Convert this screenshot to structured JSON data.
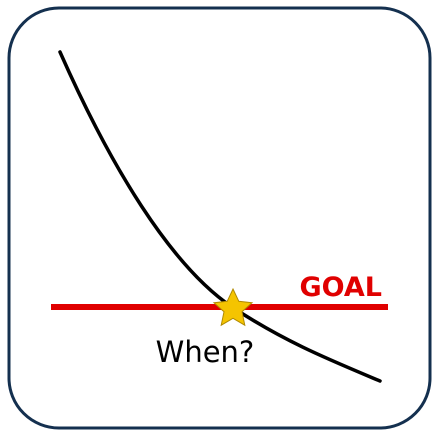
{
  "labels": {
    "goal": "GOAL",
    "question": "When?"
  },
  "icons": {
    "marker": "star-icon"
  },
  "colors": {
    "frame": "#14304f",
    "curve": "#000000",
    "goal_line": "#e00000",
    "goal_text": "#e00000",
    "star_fill": "#f5c400",
    "star_stroke": "#b08a00",
    "text": "#000000"
  }
}
